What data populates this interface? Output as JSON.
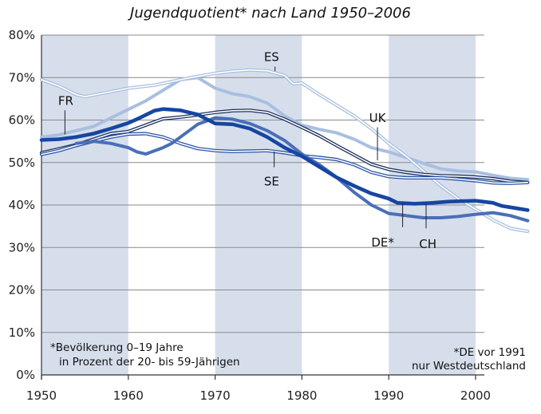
{
  "chart_data": {
    "type": "line",
    "title": "Jugendquotient* nach Land 1950–2006",
    "xlabel": "",
    "ylabel": "",
    "xlim": [
      1950,
      2006
    ],
    "ylim": [
      0,
      80
    ],
    "x_ticks": [
      "1950",
      "1960",
      "1970",
      "1980",
      "1990",
      "2000"
    ],
    "y_ticks": [
      "0%",
      "10%",
      "20%",
      "30%",
      "40%",
      "50%",
      "60%",
      "70%",
      "80%"
    ],
    "shaded_ranges": [
      [
        1950,
        1960
      ],
      [
        1970,
        1980
      ],
      [
        1990,
        2000
      ]
    ],
    "footnote_left": [
      "*Bevölkerung 0–19 Jahre",
      "in Prozent der 20- bis 59-Jährigen"
    ],
    "footnote_right": [
      "*DE vor 1991",
      "nur Westdeutschland"
    ],
    "series": [
      {
        "name": "FR",
        "color": "#a9bfe0",
        "style": "thick",
        "points": [
          [
            1950,
            56
          ],
          [
            1952,
            56.5
          ],
          [
            1954,
            57.5
          ],
          [
            1956,
            58.5
          ],
          [
            1958,
            60.5
          ],
          [
            1960,
            62.5
          ],
          [
            1962,
            64.5
          ],
          [
            1964,
            67
          ],
          [
            1966,
            69.5
          ],
          [
            1968,
            70
          ],
          [
            1970,
            67.5
          ],
          [
            1972,
            66.2
          ],
          [
            1974,
            65.5
          ],
          [
            1976,
            64
          ],
          [
            1978,
            61
          ],
          [
            1980,
            58.8
          ],
          [
            1982,
            57.8
          ],
          [
            1984,
            57
          ],
          [
            1986,
            55.5
          ],
          [
            1988,
            53.5
          ],
          [
            1990,
            52.5
          ],
          [
            1992,
            51.2
          ],
          [
            1994,
            49.8
          ],
          [
            1996,
            48.5
          ],
          [
            1998,
            48
          ],
          [
            2000,
            47.8
          ],
          [
            2002,
            47
          ],
          [
            2004,
            46.3
          ],
          [
            2006,
            46
          ]
        ]
      },
      {
        "name": "ES",
        "color": "#a9bfe0",
        "style": "double",
        "points": [
          [
            1950,
            69.5
          ],
          [
            1952,
            68
          ],
          [
            1954,
            66
          ],
          [
            1955,
            65.5
          ],
          [
            1957,
            66.3
          ],
          [
            1960,
            67.5
          ],
          [
            1963,
            68.2
          ],
          [
            1966,
            69.5
          ],
          [
            1968,
            70.3
          ],
          [
            1970,
            71
          ],
          [
            1972,
            71.5
          ],
          [
            1974,
            71.8
          ],
          [
            1976,
            71.6
          ],
          [
            1978,
            70.5
          ],
          [
            1979,
            68.5
          ],
          [
            1980,
            68.7
          ],
          [
            1982,
            66
          ],
          [
            1984,
            63.5
          ],
          [
            1986,
            61
          ],
          [
            1988,
            58
          ],
          [
            1990,
            54.5
          ],
          [
            1992,
            51.5
          ],
          [
            1994,
            48
          ],
          [
            1996,
            44.5
          ],
          [
            1998,
            41.5
          ],
          [
            2000,
            39
          ],
          [
            2002,
            36.5
          ],
          [
            2004,
            34.5
          ],
          [
            2006,
            33.8
          ]
        ]
      },
      {
        "name": "UK",
        "color": "#1b2f5e",
        "style": "double",
        "points": [
          [
            1950,
            52.3
          ],
          [
            1952,
            53.2
          ],
          [
            1954,
            54.2
          ],
          [
            1956,
            55.5
          ],
          [
            1958,
            56.8
          ],
          [
            1960,
            57.3
          ],
          [
            1962,
            58.8
          ],
          [
            1964,
            60.3
          ],
          [
            1966,
            60.7
          ],
          [
            1968,
            61.2
          ],
          [
            1970,
            61.8
          ],
          [
            1972,
            62.2
          ],
          [
            1974,
            62.3
          ],
          [
            1976,
            61.8
          ],
          [
            1978,
            60.2
          ],
          [
            1980,
            58.3
          ],
          [
            1982,
            56.3
          ],
          [
            1984,
            54
          ],
          [
            1986,
            51.8
          ],
          [
            1988,
            49.6
          ],
          [
            1990,
            48.4
          ],
          [
            1992,
            47.7
          ],
          [
            1994,
            47.2
          ],
          [
            1996,
            46.9
          ],
          [
            1998,
            46.8
          ],
          [
            2000,
            46.6
          ],
          [
            2002,
            46.2
          ],
          [
            2004,
            45.6
          ],
          [
            2006,
            45.3
          ]
        ]
      },
      {
        "name": "SE",
        "color": "#2b55a8",
        "style": "double",
        "points": [
          [
            1950,
            51.9
          ],
          [
            1952,
            52.8
          ],
          [
            1954,
            54
          ],
          [
            1956,
            55
          ],
          [
            1958,
            56
          ],
          [
            1960,
            56.7
          ],
          [
            1962,
            56.8
          ],
          [
            1964,
            56
          ],
          [
            1966,
            54.5
          ],
          [
            1968,
            53.3
          ],
          [
            1970,
            52.8
          ],
          [
            1972,
            52.6
          ],
          [
            1974,
            52.7
          ],
          [
            1976,
            52.8
          ],
          [
            1978,
            52.3
          ],
          [
            1980,
            51.6
          ],
          [
            1982,
            51.2
          ],
          [
            1984,
            50.7
          ],
          [
            1986,
            49.5
          ],
          [
            1988,
            47.7
          ],
          [
            1990,
            46.7
          ],
          [
            1992,
            46.4
          ],
          [
            1994,
            46.4
          ],
          [
            1996,
            46.4
          ],
          [
            1998,
            46.1
          ],
          [
            2000,
            45.7
          ],
          [
            2002,
            45.2
          ],
          [
            2004,
            45.1
          ],
          [
            2006,
            45.3
          ]
        ]
      },
      {
        "name": "CH",
        "color": "#4a6fb8",
        "style": "thick",
        "points": [
          [
            1954,
            54.5
          ],
          [
            1956,
            55
          ],
          [
            1958,
            54.5
          ],
          [
            1960,
            53.5
          ],
          [
            1961,
            52.5
          ],
          [
            1962,
            52
          ],
          [
            1964,
            53.5
          ],
          [
            1965,
            54.5
          ],
          [
            1966,
            56
          ],
          [
            1968,
            59
          ],
          [
            1970,
            60.5
          ],
          [
            1972,
            60.2
          ],
          [
            1974,
            59.2
          ],
          [
            1976,
            57.5
          ],
          [
            1978,
            55.2
          ],
          [
            1980,
            52
          ],
          [
            1982,
            49.5
          ],
          [
            1984,
            46.5
          ],
          [
            1986,
            43
          ],
          [
            1988,
            40
          ],
          [
            1990,
            38
          ],
          [
            1992,
            37.5
          ],
          [
            1994,
            37
          ],
          [
            1996,
            37
          ],
          [
            1998,
            37.3
          ],
          [
            2000,
            37.8
          ],
          [
            2002,
            38.2
          ],
          [
            2004,
            37.5
          ],
          [
            2006,
            36.3
          ]
        ]
      },
      {
        "name": "DE*",
        "color": "#1646a0",
        "style": "bold",
        "points": [
          [
            1950,
            55.3
          ],
          [
            1952,
            55.5
          ],
          [
            1954,
            56
          ],
          [
            1956,
            56.8
          ],
          [
            1958,
            58
          ],
          [
            1960,
            59.3
          ],
          [
            1961,
            60.2
          ],
          [
            1963,
            62.2
          ],
          [
            1964,
            62.6
          ],
          [
            1966,
            62.3
          ],
          [
            1968,
            61.3
          ],
          [
            1970,
            59.2
          ],
          [
            1972,
            59
          ],
          [
            1974,
            58
          ],
          [
            1976,
            56
          ],
          [
            1978,
            53.5
          ],
          [
            1980,
            51.5
          ],
          [
            1982,
            49
          ],
          [
            1984,
            46.5
          ],
          [
            1986,
            44.5
          ],
          [
            1988,
            42.7
          ],
          [
            1990,
            41.5
          ],
          [
            1991,
            40.5
          ],
          [
            1993,
            40.3
          ],
          [
            1995,
            40.5
          ],
          [
            1997,
            40.8
          ],
          [
            2000,
            41
          ],
          [
            2002,
            40.5
          ],
          [
            2003,
            39.8
          ],
          [
            2006,
            38.8
          ]
        ]
      }
    ],
    "labels": [
      {
        "text": "FR",
        "x": 1952.8,
        "y": 64.5,
        "lx1": 1952.7,
        "ly1": 62.3,
        "lx2": 1952.7,
        "ly2": 56.6
      },
      {
        "text": "ES",
        "x": 1976.5,
        "y": 74.8,
        "lx1": 1976.9,
        "ly1": 72.6,
        "lx2": 1976.9,
        "ly2": 71.5
      },
      {
        "text": "UK",
        "x": 1988.7,
        "y": 60.5,
        "lx1": 1988.7,
        "ly1": 58.3,
        "lx2": 1988.7,
        "ly2": 50.5
      },
      {
        "text": "SE",
        "x": 1976.5,
        "y": 45.5,
        "lx1": 1976.8,
        "ly1": 48.9,
        "lx2": 1976.8,
        "ly2": 52.6
      },
      {
        "text": "DE*",
        "x": 1989.3,
        "y": 31.2,
        "lx1": 1991.6,
        "ly1": 34.8,
        "lx2": 1991.6,
        "ly2": 40.3
      },
      {
        "text": "CH",
        "x": 1994.5,
        "y": 30.8,
        "lx1": 1994.3,
        "ly1": 34.5,
        "lx2": 1994.3,
        "ly2": 40.3
      }
    ]
  }
}
